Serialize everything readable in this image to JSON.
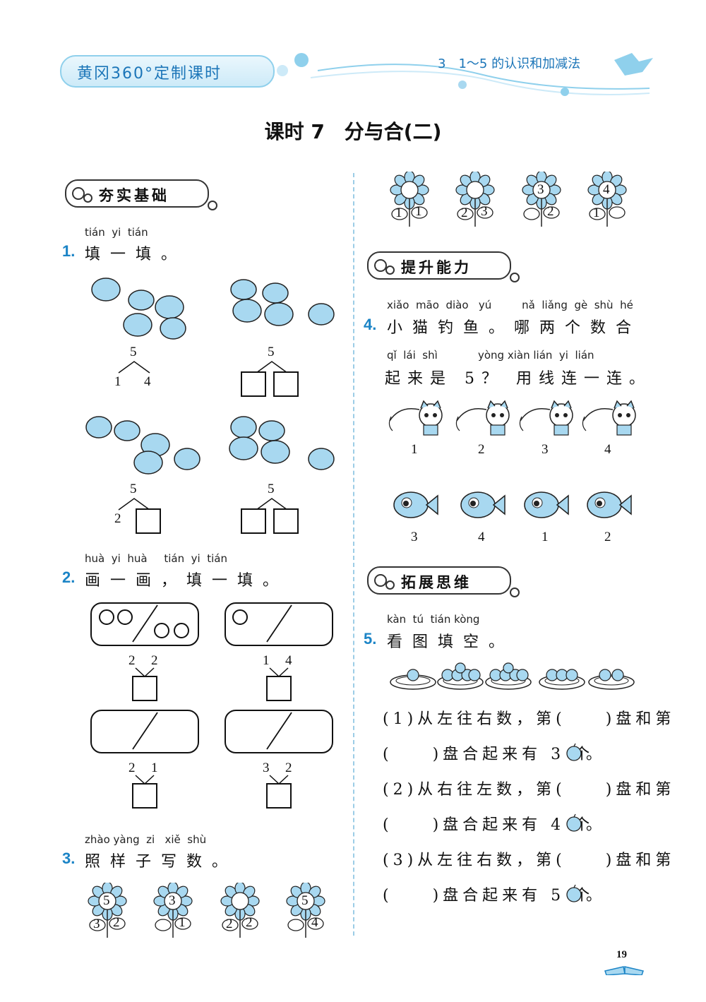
{
  "header": {
    "left": "黄冈360°定制课时",
    "right": "3　1～5 的认识和加减法"
  },
  "title": "课时 7　分与合(二)",
  "sections": {
    "basic": "夯实基础",
    "improve": "提升能力",
    "expand": "拓展思维"
  },
  "q1": {
    "num": "1.",
    "pinyin": "tián  yi  tián",
    "text": "填一填。",
    "groups": [
      {
        "total": "5",
        "left": "1",
        "right": "4"
      },
      {
        "total": "5",
        "left": "",
        "right": ""
      },
      {
        "total": "5",
        "left": "2",
        "right": ""
      },
      {
        "total": "5",
        "left": "",
        "right": ""
      }
    ]
  },
  "q2": {
    "num": "2.",
    "pinyin": "huà  yi  huà     tián  yi  tián",
    "text": "画一画，填一填。",
    "groups": [
      {
        "left": "2",
        "right": "2"
      },
      {
        "left": "1",
        "right": "4"
      },
      {
        "left": "2",
        "right": "1"
      },
      {
        "left": "3",
        "right": "2"
      }
    ]
  },
  "q3": {
    "num": "3.",
    "pinyin": "zhào yàng  zi   xiě  shù",
    "text": "照样子写数。",
    "flowers": [
      {
        "top": "5",
        "left": "3",
        "right": "2"
      },
      {
        "top": "3",
        "left": "",
        "right": "1"
      },
      {
        "top": "",
        "left": "2",
        "right": "2"
      },
      {
        "top": "5",
        "left": "",
        "right": "4"
      },
      {
        "top": "",
        "left": "1",
        "right": "1"
      },
      {
        "top": "",
        "left": "2",
        "right": "3"
      },
      {
        "top": "3",
        "left": "",
        "right": "2"
      },
      {
        "top": "4",
        "left": "1",
        "right": ""
      }
    ]
  },
  "q4": {
    "num": "4.",
    "pinyin1": "xiǎo  māo  diào   yú         nǎ  liǎng  gè  shù  hé",
    "text1": "小猫钓鱼。哪两个数合",
    "pinyin2": "qǐ  lái  shì            yòng xiàn lián  yi  lián",
    "text2": "起来是 5？ 用线连一连。",
    "cats": [
      "1",
      "2",
      "3",
      "4"
    ],
    "fish": [
      "3",
      "4",
      "1",
      "2"
    ]
  },
  "q5": {
    "num": "5.",
    "pinyin": "kàn  tú  tián kòng",
    "text": "看图填空。",
    "plates": [
      1,
      4,
      4,
      3,
      2
    ],
    "lines": [
      "(1)从左往右数，第(　　)盘和第",
      "(　　)盘合起来有 3 个",
      "(2)从右往左数，第(　　)盘和第",
      "(　　)盘合起来有 4 个",
      "(3)从左往右数，第(　　)盘和第",
      "(　　)盘合起来有 5 个"
    ],
    "period": "。"
  },
  "page_number": "19",
  "colors": {
    "accent": "#1b84c6",
    "light_blue": "#a8d8f0"
  }
}
